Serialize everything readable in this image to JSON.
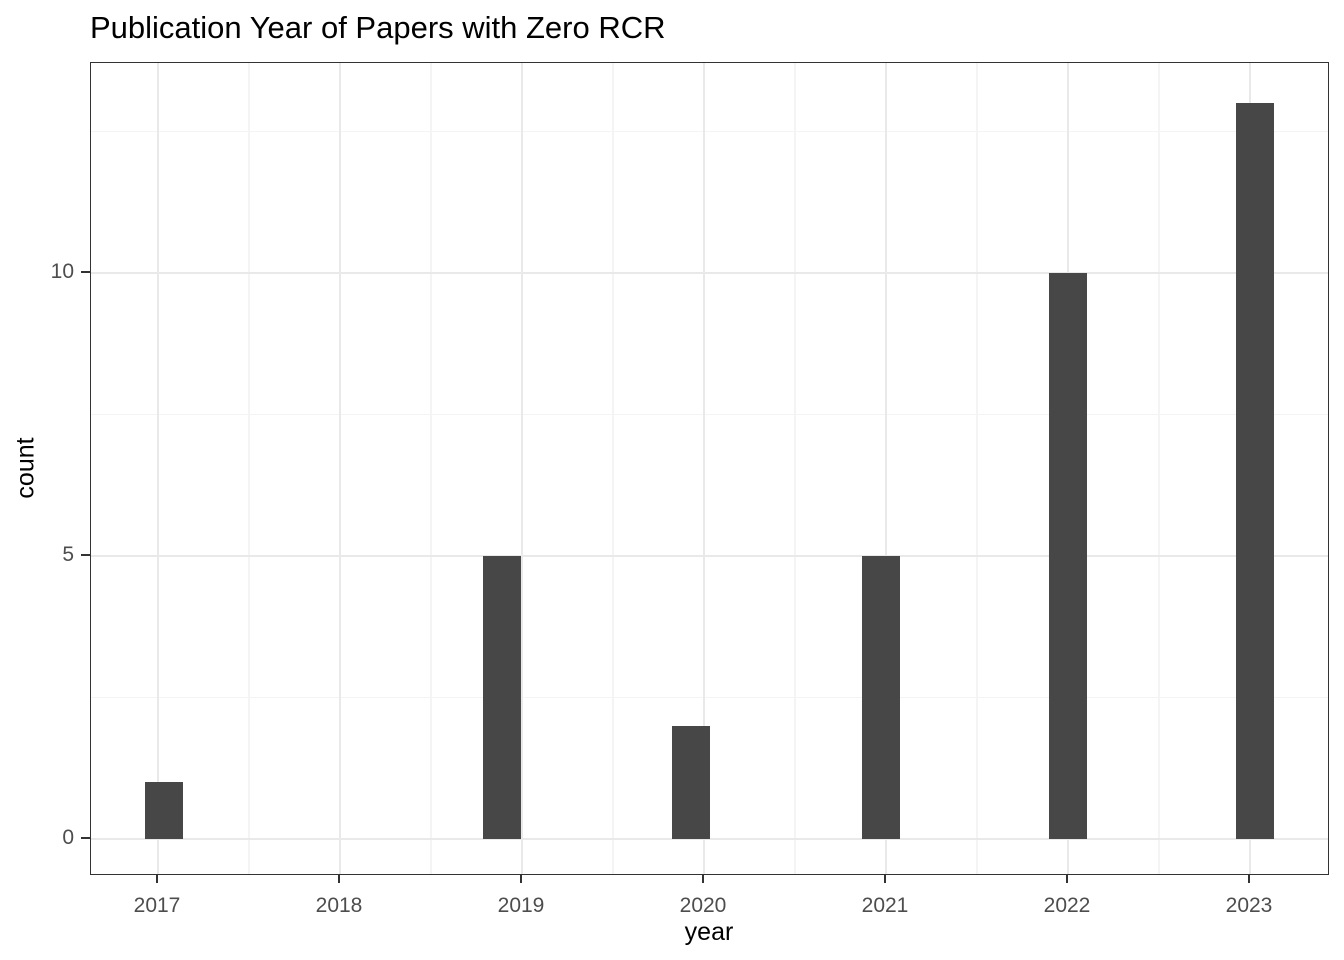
{
  "page": {
    "background_color": "#FFFFFF"
  },
  "chart_data": {
    "type": "bar",
    "title": "Publication Year of Papers with Zero RCR",
    "xlabel": "year",
    "ylabel": "count",
    "categories": [
      "2017",
      "2018",
      "2019",
      "2020",
      "2021",
      "2022",
      "2023"
    ],
    "values": [
      1,
      0,
      5,
      2,
      5,
      10,
      13
    ],
    "yticks": [
      0,
      5,
      10
    ],
    "yticks_minor": [
      2.5,
      7.5,
      12.5
    ],
    "ylim": [
      -0.65,
      13.7
    ],
    "xlim_years": [
      2016.63,
      2023.44
    ],
    "grid": "major-and-minor",
    "legend": "none",
    "colors": {
      "bar_fill": "#474747",
      "panel_border": "#333333",
      "grid_major": "#E9E9E9",
      "grid_minor": "#F4F4F4",
      "axis_text": "#4D4D4D",
      "title_text": "#000000",
      "background": "#FFFFFF"
    }
  }
}
